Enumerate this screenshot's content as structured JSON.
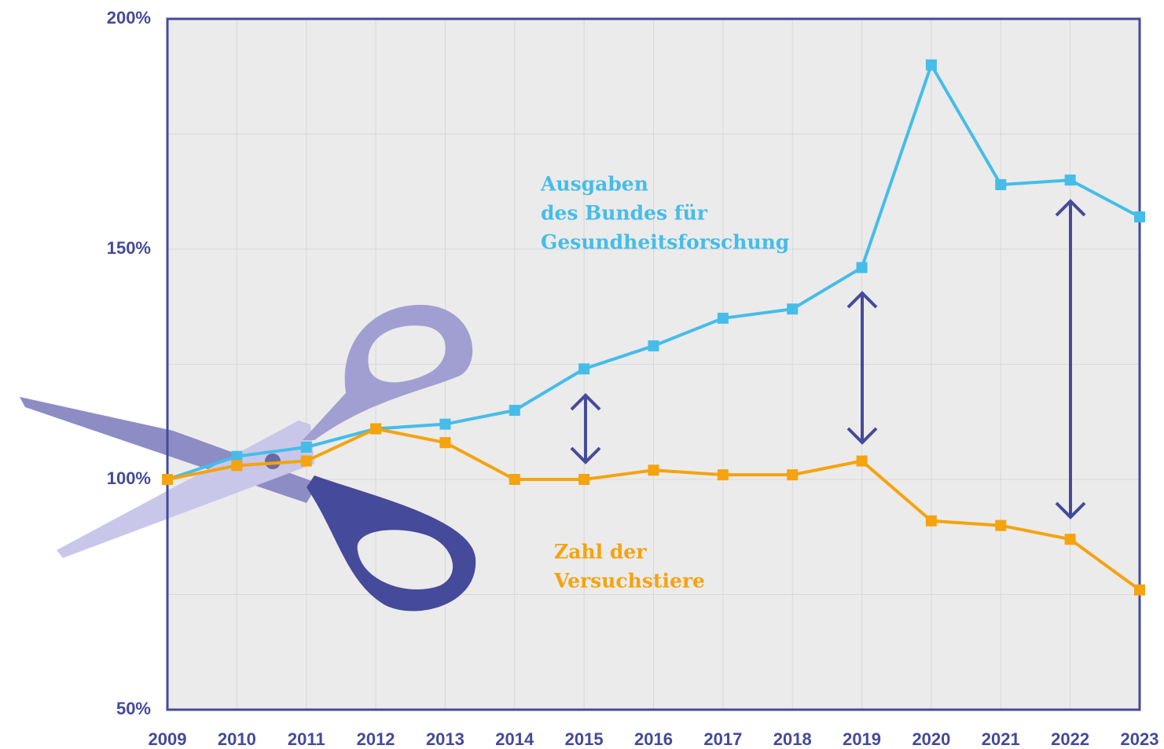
{
  "chart_data": {
    "type": "line",
    "x": [
      2009,
      2010,
      2011,
      2012,
      2013,
      2014,
      2015,
      2016,
      2017,
      2018,
      2019,
      2020,
      2021,
      2022,
      2023
    ],
    "xlim": [
      2009,
      2023
    ],
    "xticks": [
      2009,
      2010,
      2011,
      2012,
      2013,
      2014,
      2015,
      2016,
      2017,
      2018,
      2019,
      2020,
      2021,
      2022,
      2023
    ],
    "ylim": [
      50,
      200
    ],
    "yticks": [
      {
        "value": 50,
        "label": "50%"
      },
      {
        "value": 100,
        "label": "100%"
      },
      {
        "value": 150,
        "label": "150%"
      },
      {
        "value": 200,
        "label": "200%"
      }
    ],
    "minor_yticks": [
      75,
      125,
      175
    ],
    "grid": true,
    "series": [
      {
        "label_lines": [
          "Ausgaben",
          "des Bundes für",
          "Gesundheitsforschung"
        ],
        "color": "#45bde8",
        "values": [
          100,
          105,
          107,
          111,
          112,
          115,
          124,
          129,
          135,
          137,
          146,
          190,
          164,
          165,
          157
        ]
      },
      {
        "label_lines": [
          "Zahl der",
          "Versuchstiere"
        ],
        "color": "#f5a30f",
        "values": [
          100,
          103,
          104,
          111,
          108,
          100,
          100,
          102,
          101,
          101,
          104,
          91,
          90,
          87,
          76
        ]
      }
    ]
  }
}
